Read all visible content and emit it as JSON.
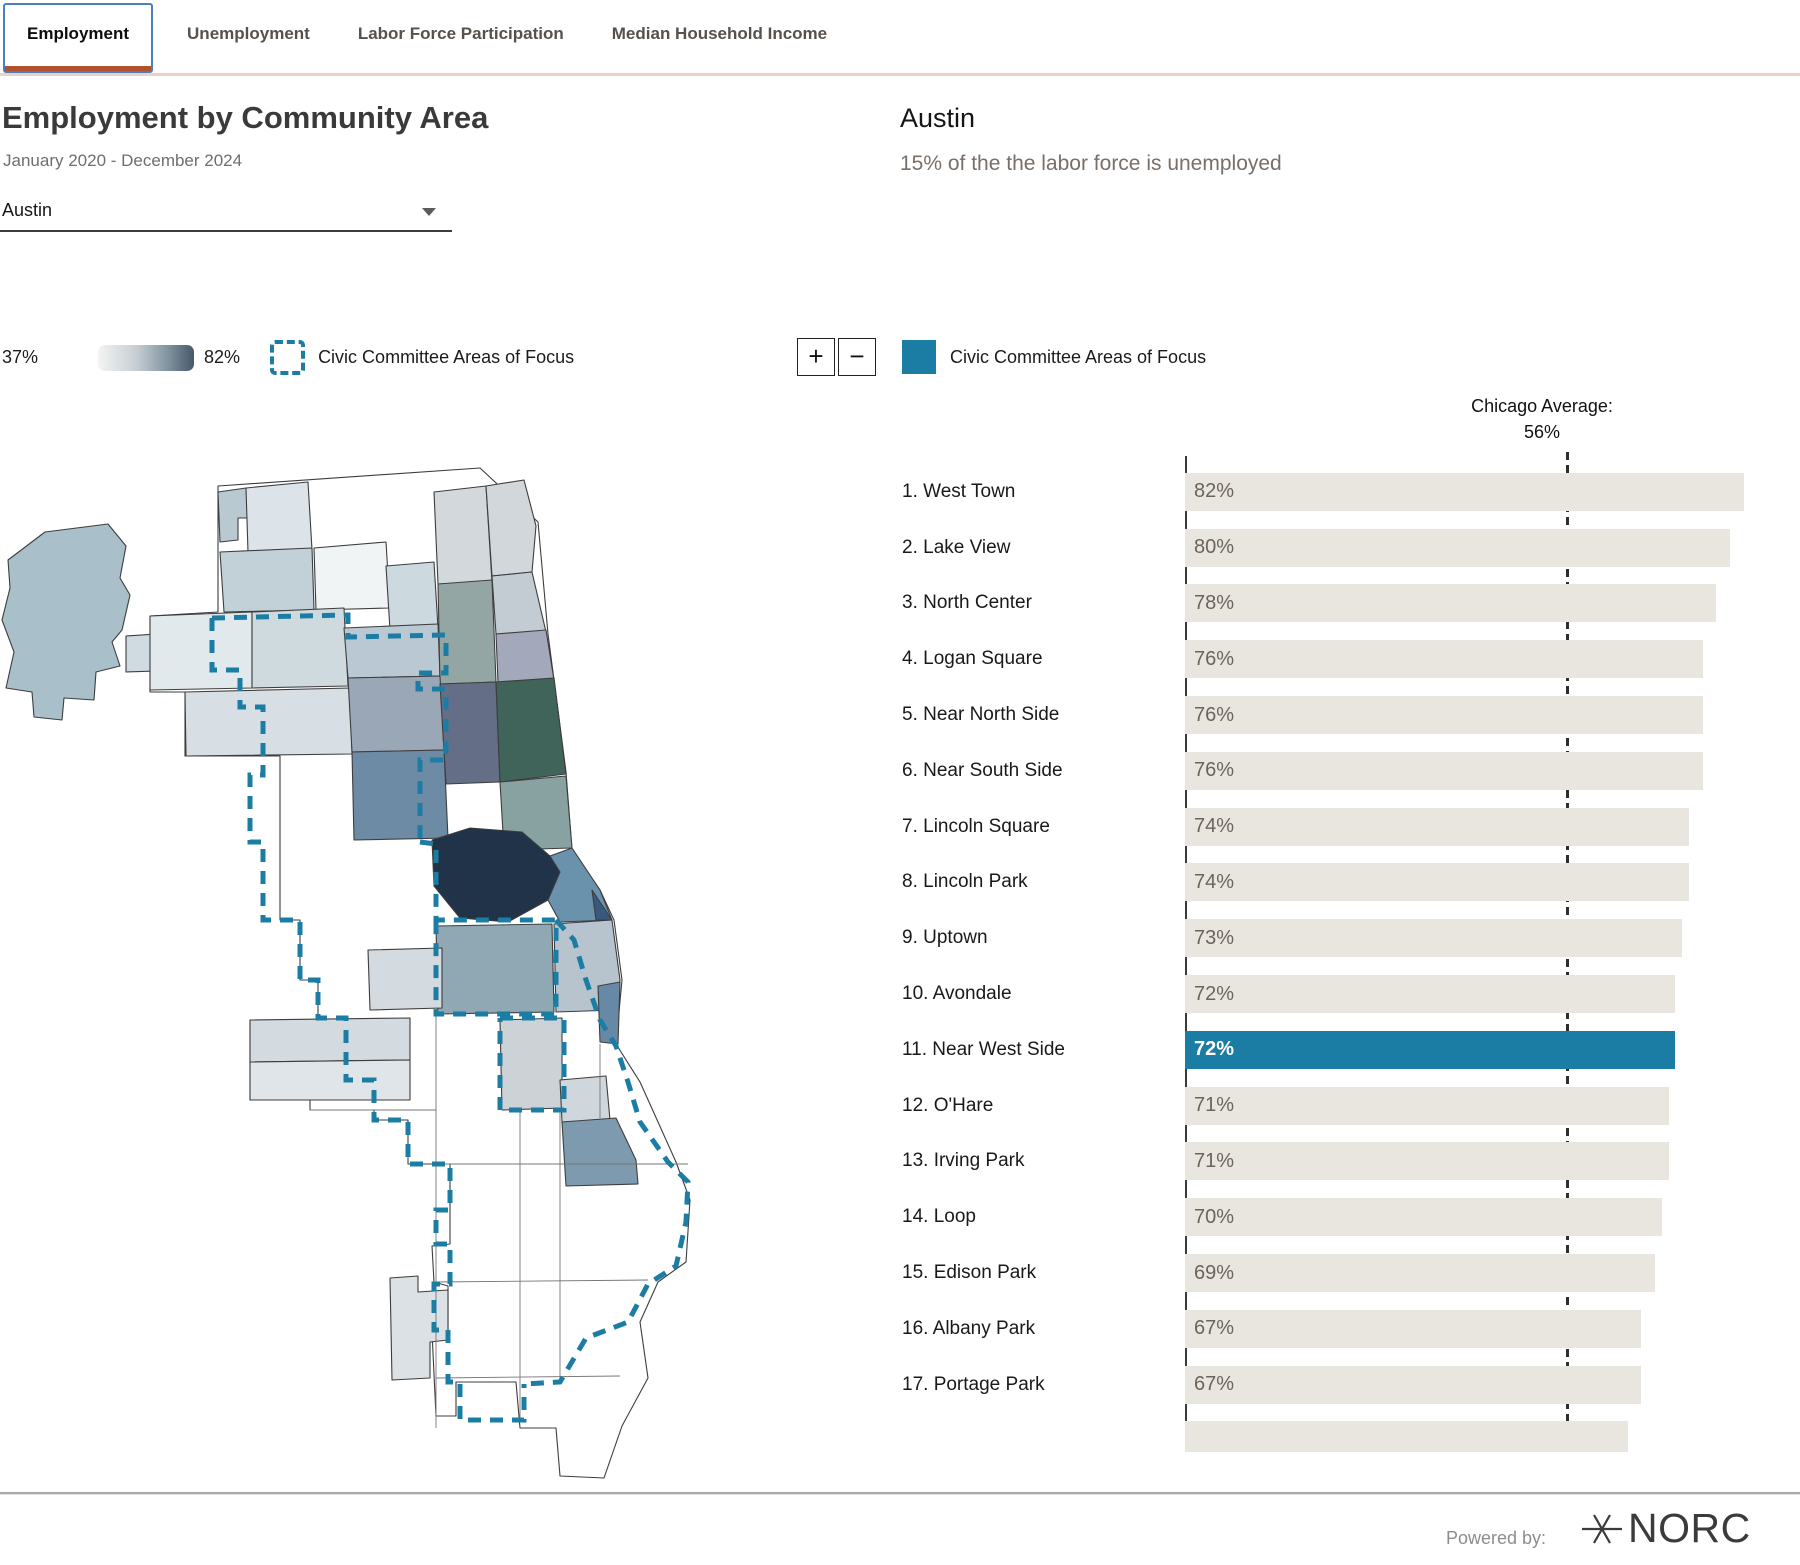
{
  "tabs": [
    {
      "label": "Employment",
      "active": true
    },
    {
      "label": "Unemployment",
      "active": false
    },
    {
      "label": "Labor Force Participation",
      "active": false
    },
    {
      "label": "Median Household Income",
      "active": false
    }
  ],
  "left_panel": {
    "title": "Employment by Community Area",
    "period": "January 2020 - December 2024",
    "dropdown_value": "Austin",
    "legend": {
      "min_label": "37%",
      "max_label": "82%",
      "focus_label": "Civic Committee Areas of Focus"
    }
  },
  "right_panel": {
    "selected_area": "Austin",
    "blurb": "15% of the the labor force is unemployed",
    "zoom_in_label": "+",
    "zoom_out_label": "−",
    "legend_focus_label": "Civic Committee Areas of Focus"
  },
  "chart_data": {
    "type": "bar",
    "orientation": "horizontal",
    "title": "Employment by Community Area",
    "categories": [
      "1. West Town",
      "2. Lake View",
      "3. North Center",
      "4. Logan Square",
      "5. Near North Side",
      "6. Near South Side",
      "7. Lincoln Square",
      "8. Lincoln Park",
      "9. Uptown",
      "10. Avondale",
      "11. Near West Side",
      "12. O'Hare",
      "13. Irving Park",
      "14. Loop",
      "15. Edison Park",
      "16. Albany Park",
      "17. Portage Park"
    ],
    "values": [
      82,
      80,
      78,
      76,
      76,
      76,
      74,
      74,
      73,
      72,
      72,
      71,
      71,
      70,
      69,
      67,
      67
    ],
    "value_labels": [
      "82%",
      "80%",
      "78%",
      "76%",
      "76%",
      "76%",
      "74%",
      "74%",
      "73%",
      "72%",
      "72%",
      "71%",
      "71%",
      "70%",
      "69%",
      "67%",
      "67%"
    ],
    "highlighted_index": 10,
    "reference_line": {
      "label": "Chicago Average:",
      "value": 56,
      "value_label": "56%"
    },
    "xlim": [
      0,
      90
    ],
    "grid": false,
    "partial_bar_value": 65,
    "map_choropleth_range": {
      "min": 37,
      "max": 82
    }
  },
  "footer": {
    "powered_by": "Powered by:",
    "brand": "NORC"
  },
  "colors": {
    "accent": "#1c7da4",
    "tab_active_border": "#4a80bd",
    "tab_underline": "#b0532c",
    "tab_rule": "#ecd2c6",
    "bar_bg": "#e9e6e0",
    "gradient_start": "#f3f4f4",
    "gradient_end": "#47586a",
    "map_darkest": "#203349"
  }
}
